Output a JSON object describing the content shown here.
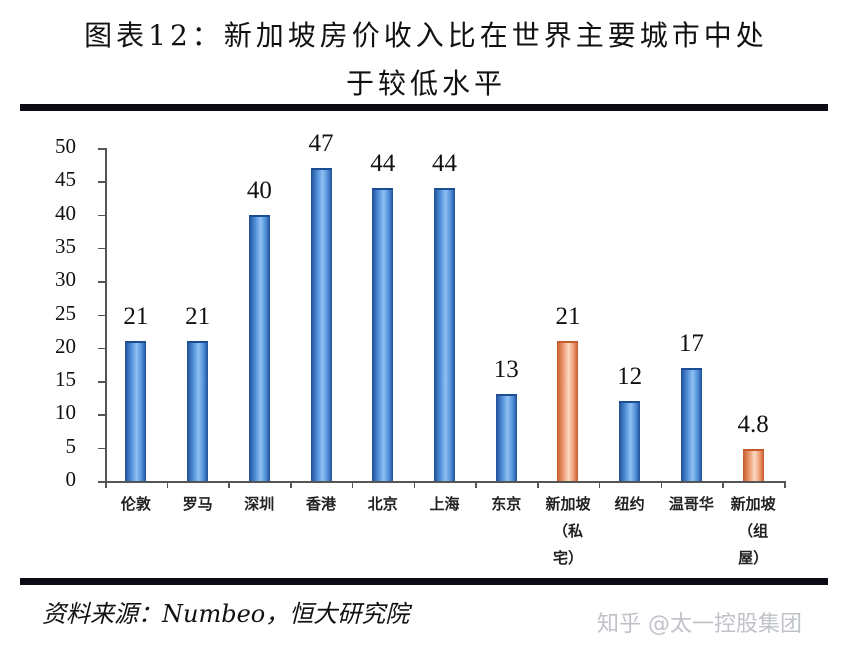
{
  "header": {
    "title_line1": "图表12：新加坡房价收入比在世界主要城市中处",
    "title_line2": "于较低水平"
  },
  "footer": {
    "source": "资料来源：Numbeo，恒大研究院",
    "watermark": "知乎 @太一控股集团"
  },
  "colors": {
    "bar_default": "#4a86d0",
    "bar_highlight": "#e8875a",
    "rule": "#0b0b14"
  },
  "chart_data": {
    "type": "bar",
    "title": "新加坡房价收入比在世界主要城市中处于较低水平",
    "xlabel": "",
    "ylabel": "",
    "ylim": [
      0,
      50
    ],
    "yticks": [
      0,
      5,
      10,
      15,
      20,
      25,
      30,
      35,
      40,
      45,
      50
    ],
    "grid": false,
    "legend": null,
    "categories": [
      "伦敦",
      "罗马",
      "深圳",
      "香港",
      "北京",
      "上海",
      "东京",
      "新加坡（私宅）",
      "纽约",
      "温哥华",
      "新加坡（组屋）"
    ],
    "category_label_lines": [
      [
        "伦敦"
      ],
      [
        "罗马"
      ],
      [
        "深圳"
      ],
      [
        "香港"
      ],
      [
        "北京"
      ],
      [
        "上海"
      ],
      [
        "东京"
      ],
      [
        "新加坡",
        "（私",
        "宅）"
      ],
      [
        "纽约"
      ],
      [
        "温哥华"
      ],
      [
        "新加坡",
        "（组",
        "屋）"
      ]
    ],
    "values": [
      21,
      21,
      40,
      47,
      44,
      44,
      13,
      21,
      12,
      17,
      4.8
    ],
    "value_labels": [
      "21",
      "21",
      "40",
      "47",
      "44",
      "44",
      "13",
      "21",
      "12",
      "17",
      "4.8"
    ],
    "highlight": [
      false,
      false,
      false,
      false,
      false,
      false,
      false,
      true,
      false,
      false,
      true
    ]
  }
}
